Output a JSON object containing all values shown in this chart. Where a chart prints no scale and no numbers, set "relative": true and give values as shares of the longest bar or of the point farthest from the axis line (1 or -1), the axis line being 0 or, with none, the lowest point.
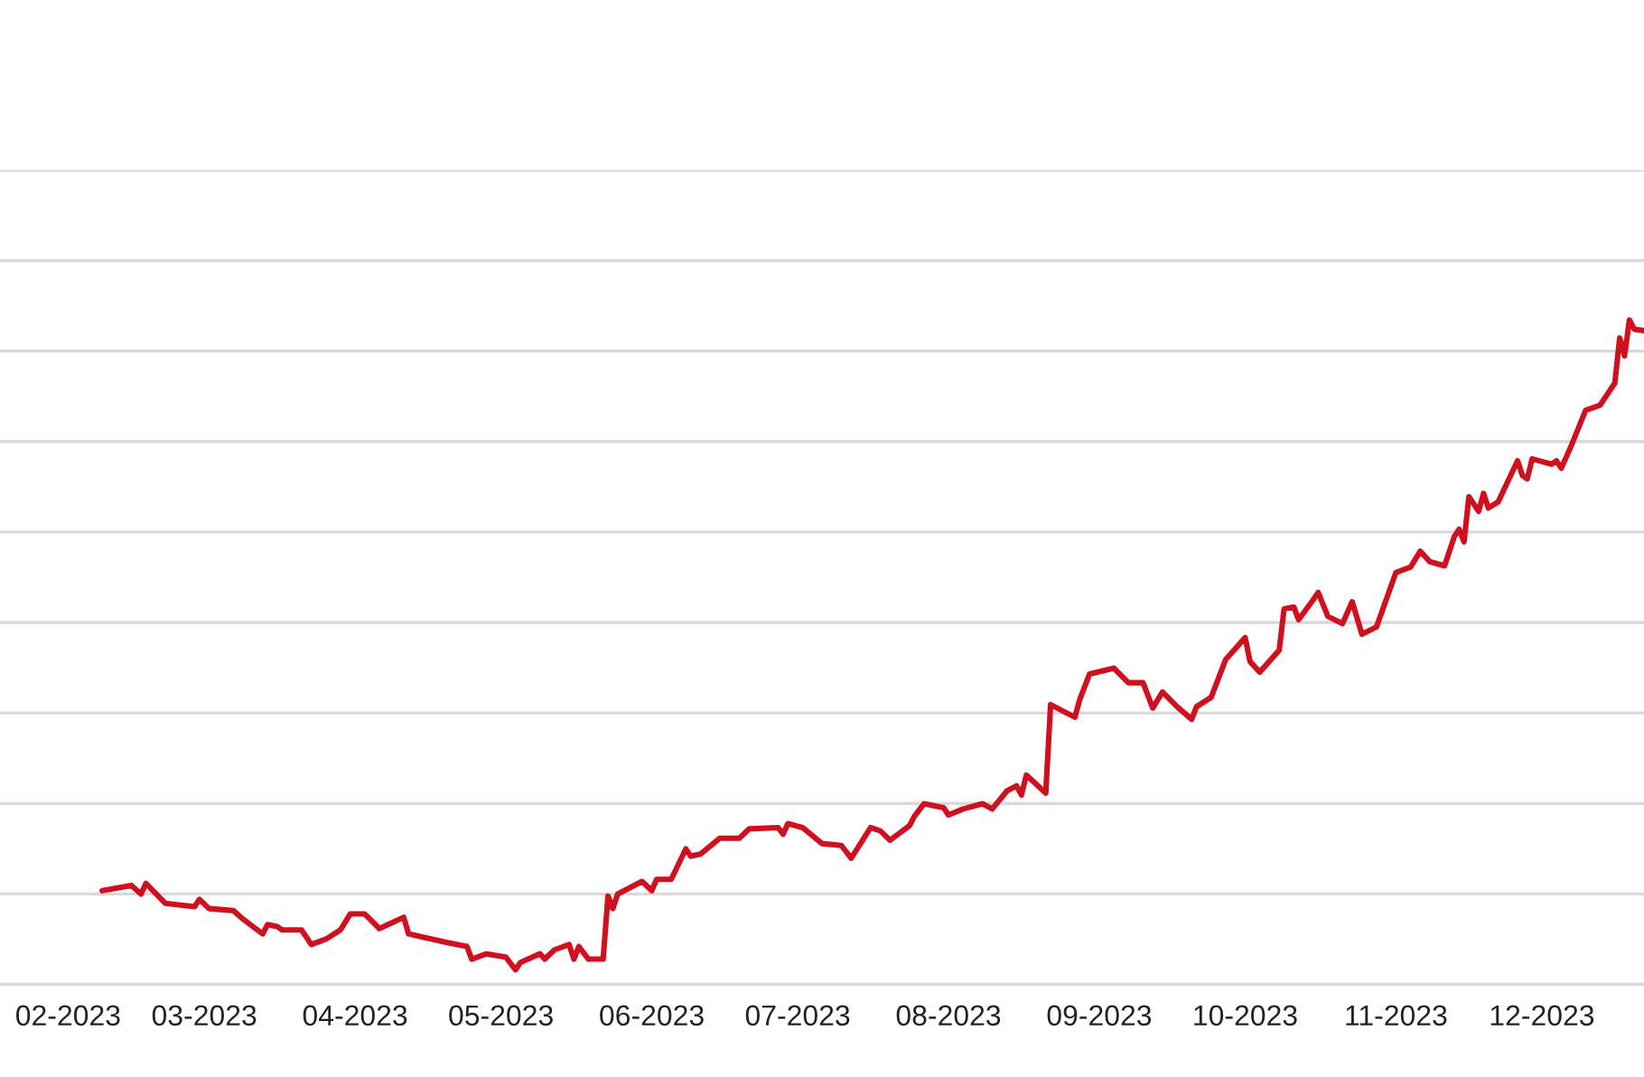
{
  "chart_data": {
    "type": "line",
    "relative": true,
    "grid": "y",
    "tick_labels": "x",
    "marker": "none",
    "line_style": "solid",
    "xlim": [
      "2023-01-18",
      "2023-12-22"
    ],
    "xticks": [
      {
        "value": "2023-02-01",
        "label": "02-2023"
      },
      {
        "value": "2023-03-01",
        "label": "03-2023"
      },
      {
        "value": "2023-04-01",
        "label": "04-2023"
      },
      {
        "value": "2023-05-01",
        "label": "05-2023"
      },
      {
        "value": "2023-06-01",
        "label": "06-2023"
      },
      {
        "value": "2023-07-01",
        "label": "07-2023"
      },
      {
        "value": "2023-08-01",
        "label": "08-2023"
      },
      {
        "value": "2023-09-01",
        "label": "09-2023"
      },
      {
        "value": "2023-10-01",
        "label": "10-2023"
      },
      {
        "value": "2023-11-01",
        "label": "11-2023"
      },
      {
        "value": "2023-12-01",
        "label": "12-2023"
      }
    ],
    "x": [
      "2023-02-08",
      "2023-02-14",
      "2023-02-16",
      "2023-02-17",
      "2023-02-21",
      "2023-02-27",
      "2023-02-28",
      "2023-03-02",
      "2023-03-07",
      "2023-03-09",
      "2023-03-13",
      "2023-03-14",
      "2023-03-16",
      "2023-03-17",
      "2023-03-21",
      "2023-03-23",
      "2023-03-26",
      "2023-03-29",
      "2023-03-31",
      "2023-04-03",
      "2023-04-06",
      "2023-04-11",
      "2023-04-12",
      "2023-04-15",
      "2023-04-20",
      "2023-04-24",
      "2023-04-25",
      "2023-04-28",
      "2023-05-02",
      "2023-05-04",
      "2023-05-05",
      "2023-05-09",
      "2023-05-10",
      "2023-05-12",
      "2023-05-15",
      "2023-05-16",
      "2023-05-17",
      "2023-05-19",
      "2023-05-22",
      "2023-05-23",
      "2023-05-24",
      "2023-05-25",
      "2023-05-30",
      "2023-06-01",
      "2023-06-02",
      "2023-06-05",
      "2023-06-08",
      "2023-06-09",
      "2023-06-11",
      "2023-06-15",
      "2023-06-19",
      "2023-06-21",
      "2023-06-27",
      "2023-06-28",
      "2023-06-29",
      "2023-07-02",
      "2023-07-06",
      "2023-07-10",
      "2023-07-12",
      "2023-07-16",
      "2023-07-18",
      "2023-07-20",
      "2023-07-24",
      "2023-07-25",
      "2023-07-27",
      "2023-07-31",
      "2023-08-01",
      "2023-08-04",
      "2023-08-08",
      "2023-08-10",
      "2023-08-13",
      "2023-08-15",
      "2023-08-16",
      "2023-08-17",
      "2023-08-21",
      "2023-08-22",
      "2023-08-27",
      "2023-08-28",
      "2023-08-30",
      "2023-09-04",
      "2023-09-07",
      "2023-09-10",
      "2023-09-12",
      "2023-09-14",
      "2023-09-17",
      "2023-09-20",
      "2023-09-21",
      "2023-09-24",
      "2023-09-27",
      "2023-10-01",
      "2023-10-02",
      "2023-10-04",
      "2023-10-08",
      "2023-10-09",
      "2023-10-11",
      "2023-10-12",
      "2023-10-15",
      "2023-10-16",
      "2023-10-18",
      "2023-10-21",
      "2023-10-23",
      "2023-10-25",
      "2023-10-28",
      "2023-11-01",
      "2023-11-04",
      "2023-11-06",
      "2023-11-08",
      "2023-11-11",
      "2023-11-13",
      "2023-11-14",
      "2023-11-15",
      "2023-11-16",
      "2023-11-18",
      "2023-11-19",
      "2023-11-20",
      "2023-11-22",
      "2023-11-26",
      "2023-11-27",
      "2023-11-28",
      "2023-11-29",
      "2023-12-03",
      "2023-12-04",
      "2023-12-05",
      "2023-12-07",
      "2023-12-10",
      "2023-12-13",
      "2023-12-16",
      "2023-12-17",
      "2023-12-18",
      "2023-12-19",
      "2023-12-20",
      "2023-12-22"
    ],
    "series": [
      {
        "color": "#d0101e",
        "values": [
          0.141,
          0.149,
          0.136,
          0.152,
          0.122,
          0.117,
          0.128,
          0.114,
          0.111,
          0.098,
          0.076,
          0.09,
          0.087,
          0.082,
          0.082,
          0.06,
          0.068,
          0.082,
          0.106,
          0.106,
          0.084,
          0.101,
          0.076,
          0.071,
          0.063,
          0.057,
          0.038,
          0.046,
          0.041,
          0.022,
          0.033,
          0.046,
          0.038,
          0.052,
          0.06,
          0.038,
          0.057,
          0.038,
          0.038,
          0.133,
          0.114,
          0.136,
          0.155,
          0.141,
          0.158,
          0.158,
          0.204,
          0.193,
          0.196,
          0.22,
          0.22,
          0.234,
          0.236,
          0.226,
          0.242,
          0.236,
          0.212,
          0.209,
          0.19,
          0.236,
          0.231,
          0.217,
          0.239,
          0.253,
          0.272,
          0.266,
          0.255,
          0.264,
          0.272,
          0.264,
          0.291,
          0.299,
          0.285,
          0.315,
          0.288,
          0.421,
          0.402,
          0.429,
          0.467,
          0.476,
          0.454,
          0.454,
          0.416,
          0.44,
          0.418,
          0.399,
          0.418,
          0.432,
          0.489,
          0.522,
          0.486,
          0.47,
          0.503,
          0.565,
          0.568,
          0.549,
          0.579,
          0.59,
          0.554,
          0.543,
          0.576,
          0.527,
          0.538,
          0.62,
          0.628,
          0.652,
          0.636,
          0.63,
          0.674,
          0.685,
          0.666,
          0.734,
          0.712,
          0.739,
          0.717,
          0.726,
          0.788,
          0.766,
          0.761,
          0.791,
          0.783,
          0.788,
          0.777,
          0.81,
          0.864,
          0.872,
          0.905,
          0.973,
          0.946,
          1,
          0.986,
          0.984
        ]
      }
    ]
  }
}
